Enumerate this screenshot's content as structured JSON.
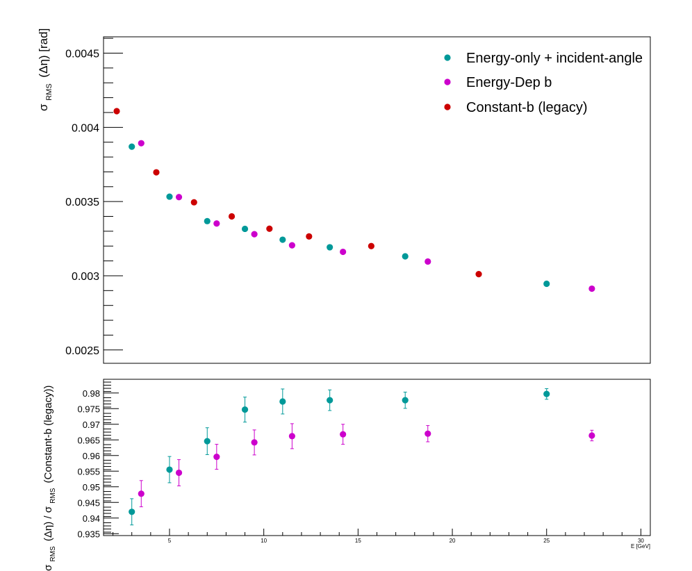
{
  "chart_data": [
    {
      "type": "scatter",
      "ylabel": "σ_RMS (Δη) [rad]",
      "y_label_parts": {
        "sigma": "σ",
        "sub": "RMS",
        "rest": "(Δη) [rad]"
      },
      "xlim": [
        1.5,
        30.5
      ],
      "ylim": [
        0.00241,
        0.00461
      ],
      "y_ticks": [
        0.0025,
        0.003,
        0.0035,
        0.004,
        0.0045
      ],
      "y_tick_labels": [
        "0.0025",
        "0.003",
        "0.0035",
        "0.004",
        "0.0045"
      ],
      "legend_position": "top-right",
      "series": [
        {
          "name": "Energy-only + incident-angle",
          "color": "#009999",
          "points": [
            {
              "x": 3.0,
              "y": 0.00387
            },
            {
              "x": 5.0,
              "y": 0.003533
            },
            {
              "x": 7.0,
              "y": 0.003368
            },
            {
              "x": 9.0,
              "y": 0.003316
            },
            {
              "x": 11.0,
              "y": 0.003243
            },
            {
              "x": 13.5,
              "y": 0.003192
            },
            {
              "x": 17.5,
              "y": 0.003131
            },
            {
              "x": 25.0,
              "y": 0.002946
            }
          ]
        },
        {
          "name": "Energy-Dep b",
          "color": "#cc00cc",
          "points": [
            {
              "x": 3.5,
              "y": 0.003893
            },
            {
              "x": 5.5,
              "y": 0.00353
            },
            {
              "x": 7.5,
              "y": 0.003352
            },
            {
              "x": 9.5,
              "y": 0.00328
            },
            {
              "x": 11.5,
              "y": 0.003205
            },
            {
              "x": 14.2,
              "y": 0.003161
            },
            {
              "x": 18.7,
              "y": 0.003096
            },
            {
              "x": 27.4,
              "y": 0.002913
            }
          ]
        },
        {
          "name": "Constant-b (legacy)",
          "color": "#cc0000",
          "points": [
            {
              "x": 2.2,
              "y": 0.004109
            },
            {
              "x": 4.3,
              "y": 0.003697
            },
            {
              "x": 6.3,
              "y": 0.003495
            },
            {
              "x": 8.3,
              "y": 0.0034
            },
            {
              "x": 10.3,
              "y": 0.003317
            },
            {
              "x": 12.4,
              "y": 0.003265
            },
            {
              "x": 15.7,
              "y": 0.0032
            },
            {
              "x": 21.4,
              "y": 0.003011
            }
          ]
        }
      ]
    },
    {
      "type": "scatter",
      "ylabel": "σ_RMS (Δη) / σ_RMS (Constant-b (legacy))",
      "y_label_parts": {
        "sigma": "σ",
        "sub": "RMS",
        "mid": "(Δη) / ",
        "sigma2": "σ",
        "sub2": "RMS",
        "rest": "(Constant-b (legacy))"
      },
      "xlabel": "E  [GeV]",
      "xlim": [
        1.5,
        30.5
      ],
      "ylim": [
        0.9344,
        0.9844
      ],
      "x_ticks": [
        5,
        10,
        15,
        20,
        25,
        30
      ],
      "x_tick_labels": [
        "5",
        "10",
        "15",
        "20",
        "25",
        "30"
      ],
      "y_ticks": [
        0.935,
        0.94,
        0.945,
        0.95,
        0.955,
        0.96,
        0.965,
        0.97,
        0.975,
        0.98
      ],
      "y_tick_labels": [
        "0.935",
        "0.94",
        "0.945",
        "0.95",
        "0.955",
        "0.96",
        "0.965",
        "0.97",
        "0.975",
        "0.98"
      ],
      "series": [
        {
          "name": "Energy-only + incident-angle",
          "color": "#009999",
          "points": [
            {
              "x": 3.0,
              "y": 0.942,
              "err": 0.0042
            },
            {
              "x": 5.0,
              "y": 0.9555,
              "err": 0.0042
            },
            {
              "x": 7.0,
              "y": 0.9646,
              "err": 0.0043
            },
            {
              "x": 9.0,
              "y": 0.9747,
              "err": 0.004
            },
            {
              "x": 11.0,
              "y": 0.9773,
              "err": 0.004
            },
            {
              "x": 13.5,
              "y": 0.9777,
              "err": 0.0033
            },
            {
              "x": 17.5,
              "y": 0.9777,
              "err": 0.0026
            },
            {
              "x": 25.0,
              "y": 0.9797,
              "err": 0.0017
            }
          ]
        },
        {
          "name": "Energy-Dep b",
          "color": "#cc00cc",
          "points": [
            {
              "x": 3.5,
              "y": 0.9478,
              "err": 0.0042
            },
            {
              "x": 5.5,
              "y": 0.9545,
              "err": 0.0042
            },
            {
              "x": 7.5,
              "y": 0.9596,
              "err": 0.004
            },
            {
              "x": 9.5,
              "y": 0.9642,
              "err": 0.004
            },
            {
              "x": 11.5,
              "y": 0.9662,
              "err": 0.004
            },
            {
              "x": 14.2,
              "y": 0.9668,
              "err": 0.0032
            },
            {
              "x": 18.7,
              "y": 0.967,
              "err": 0.0026
            },
            {
              "x": 27.4,
              "y": 0.9664,
              "err": 0.0017
            }
          ]
        }
      ]
    }
  ]
}
